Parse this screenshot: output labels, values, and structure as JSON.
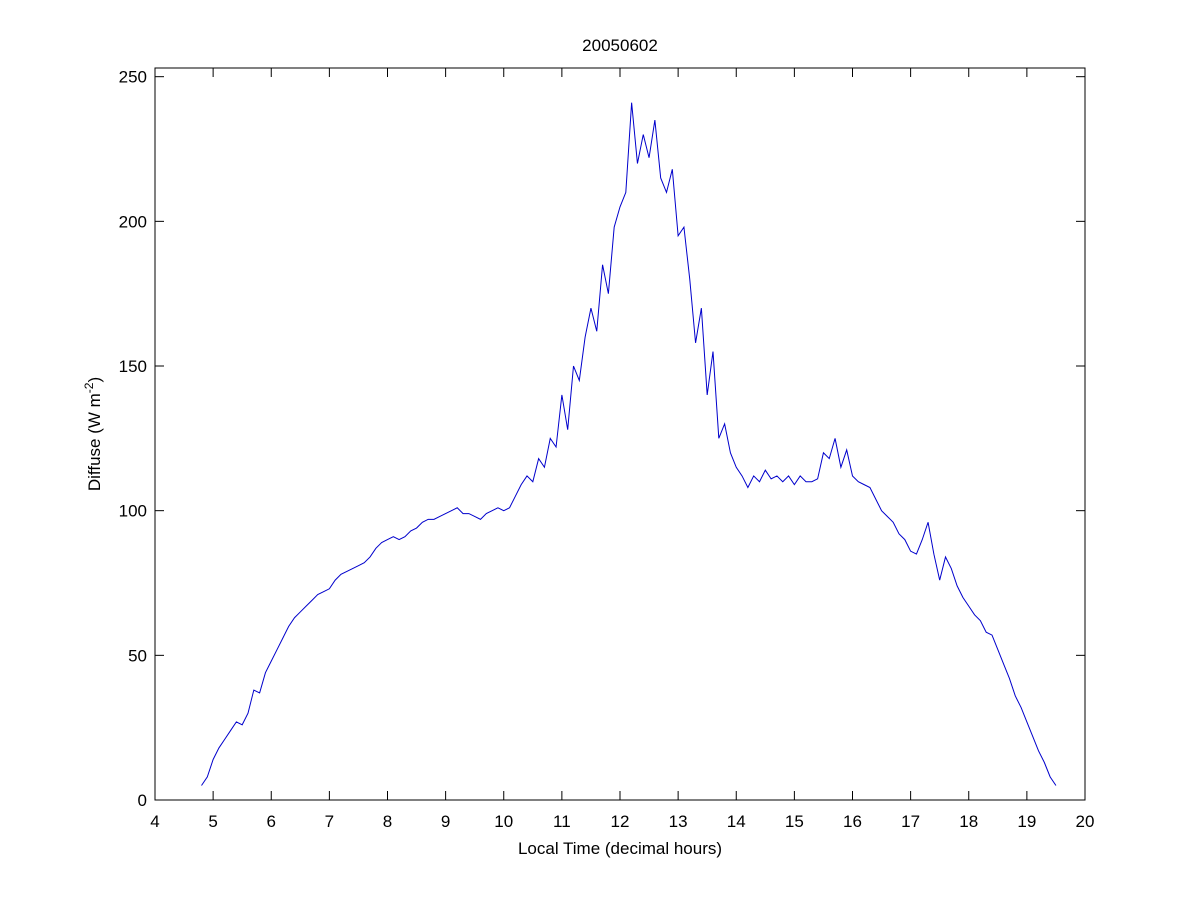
{
  "chart_data": {
    "type": "line",
    "title": "20050602",
    "xlabel": "Local Time (decimal hours)",
    "ylabel": {
      "text": "Diffuse (W m",
      "sup": "-2",
      "tail": ")"
    },
    "xlim": [
      4,
      20
    ],
    "ylim": [
      0,
      253
    ],
    "xticks": [
      4,
      5,
      6,
      7,
      8,
      9,
      10,
      11,
      12,
      13,
      14,
      15,
      16,
      17,
      18,
      19,
      20
    ],
    "yticks": [
      0,
      50,
      100,
      150,
      200,
      250
    ],
    "grid": false,
    "series": [
      {
        "color": "#0000cc",
        "x": [
          4.8,
          4.9,
          5.0,
          5.1,
          5.2,
          5.3,
          5.4,
          5.5,
          5.6,
          5.7,
          5.8,
          5.9,
          6.0,
          6.1,
          6.2,
          6.3,
          6.4,
          6.5,
          6.6,
          6.7,
          6.8,
          6.9,
          7.0,
          7.1,
          7.2,
          7.3,
          7.4,
          7.5,
          7.6,
          7.7,
          7.8,
          7.9,
          8.0,
          8.1,
          8.2,
          8.3,
          8.4,
          8.5,
          8.6,
          8.7,
          8.8,
          8.9,
          9.0,
          9.1,
          9.2,
          9.3,
          9.4,
          9.5,
          9.6,
          9.7,
          9.8,
          9.9,
          10.0,
          10.1,
          10.2,
          10.3,
          10.4,
          10.5,
          10.6,
          10.7,
          10.8,
          10.9,
          11.0,
          11.1,
          11.2,
          11.3,
          11.4,
          11.5,
          11.6,
          11.7,
          11.8,
          11.9,
          12.0,
          12.1,
          12.2,
          12.3,
          12.4,
          12.5,
          12.6,
          12.7,
          12.8,
          12.9,
          13.0,
          13.1,
          13.2,
          13.3,
          13.4,
          13.5,
          13.6,
          13.7,
          13.8,
          13.9,
          14.0,
          14.1,
          14.2,
          14.3,
          14.4,
          14.5,
          14.6,
          14.7,
          14.8,
          14.9,
          15.0,
          15.1,
          15.2,
          15.3,
          15.4,
          15.5,
          15.6,
          15.7,
          15.8,
          15.9,
          16.0,
          16.1,
          16.2,
          16.3,
          16.4,
          16.5,
          16.6,
          16.7,
          16.8,
          16.9,
          17.0,
          17.1,
          17.2,
          17.3,
          17.4,
          17.5,
          17.6,
          17.7,
          17.8,
          17.9,
          18.0,
          18.1,
          18.2,
          18.3,
          18.4,
          18.5,
          18.6,
          18.7,
          18.8,
          18.9,
          19.0,
          19.1,
          19.2,
          19.3,
          19.4,
          19.5
        ],
        "values": [
          5,
          8,
          14,
          18,
          21,
          24,
          27,
          26,
          30,
          38,
          37,
          44,
          48,
          52,
          56,
          60,
          63,
          65,
          67,
          69,
          71,
          72,
          73,
          76,
          78,
          79,
          80,
          81,
          82,
          84,
          87,
          89,
          90,
          91,
          90,
          91,
          93,
          94,
          96,
          97,
          97,
          98,
          99,
          100,
          101,
          99,
          99,
          98,
          97,
          99,
          100,
          101,
          100,
          101,
          105,
          109,
          112,
          110,
          118,
          115,
          125,
          122,
          140,
          128,
          150,
          145,
          160,
          170,
          162,
          185,
          175,
          198,
          205,
          210,
          241,
          220,
          230,
          222,
          235,
          215,
          210,
          218,
          195,
          198,
          180,
          158,
          170,
          140,
          155,
          125,
          130,
          120,
          115,
          112,
          108,
          112,
          110,
          114,
          111,
          112,
          110,
          112,
          109,
          112,
          110,
          110,
          111,
          120,
          118,
          125,
          115,
          121,
          112,
          110,
          109,
          108,
          104,
          100,
          98,
          96,
          92,
          90,
          86,
          85,
          90,
          96,
          85,
          76,
          84,
          80,
          74,
          70,
          67,
          64,
          62,
          58,
          57,
          52,
          47,
          42,
          36,
          32,
          27,
          22,
          17,
          13,
          8,
          5
        ]
      }
    ]
  }
}
